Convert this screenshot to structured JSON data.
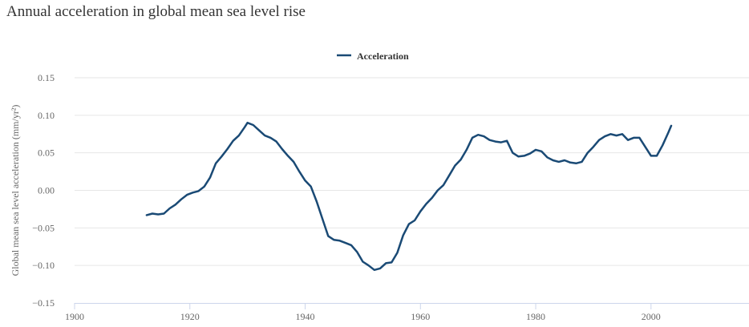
{
  "chart_data": {
    "type": "line",
    "title": "Annual acceleration in global mean sea level rise",
    "xlabel": "",
    "ylabel": "Global mean sea level acceleration (mm/yr²)",
    "xlim": [
      1900,
      2017
    ],
    "ylim": [
      -0.15,
      0.15
    ],
    "x_ticks": [
      1900,
      1920,
      1940,
      1960,
      1980,
      2000
    ],
    "y_ticks": [
      -0.15,
      -0.1,
      -0.05,
      0.0,
      0.05,
      0.1,
      0.15
    ],
    "y_tick_labels": [
      "−0.15",
      "−0.10",
      "−0.05",
      "0.00",
      "0.05",
      "0.10",
      "0.15"
    ],
    "grid": true,
    "legend_position": "top-center",
    "series": [
      {
        "name": "Acceleration",
        "color": "#1a4a75",
        "x": [
          1912.5,
          1913.5,
          1914.5,
          1915.5,
          1916.5,
          1917.5,
          1918.5,
          1919.5,
          1920.5,
          1921.5,
          1922.5,
          1923.5,
          1924.5,
          1925.5,
          1926.5,
          1927.5,
          1928.5,
          1929.5,
          1930.0,
          1931.0,
          1932.0,
          1933.0,
          1934.0,
          1935.0,
          1936.0,
          1937.0,
          1938.0,
          1939.0,
          1940.0,
          1941.0,
          1942.0,
          1943.0,
          1944.0,
          1945.0,
          1946.0,
          1947.0,
          1948.0,
          1949.0,
          1950.0,
          1951.0,
          1952.0,
          1953.0,
          1954.0,
          1955.0,
          1956.0,
          1957.0,
          1958.0,
          1959.0,
          1960.0,
          1961.0,
          1962.0,
          1963.0,
          1964.0,
          1965.0,
          1966.0,
          1967.0,
          1968.0,
          1969.0,
          1970.0,
          1971.0,
          1972.0,
          1973.0,
          1974.0,
          1975.0,
          1976.0,
          1977.0,
          1978.0,
          1979.0,
          1980.0,
          1981.0,
          1982.0,
          1983.0,
          1984.0,
          1985.0,
          1986.0,
          1987.0,
          1988.0,
          1989.0,
          1990.0,
          1991.0,
          1992.0,
          1993.0,
          1994.0,
          1995.0,
          1996.0,
          1997.0,
          1998.0,
          1999.0,
          2000.0,
          2001.0,
          2002.0,
          2003.0,
          2003.5
        ],
        "values": [
          -0.033,
          -0.031,
          -0.032,
          -0.031,
          -0.024,
          -0.019,
          -0.012,
          -0.006,
          -0.003,
          -0.001,
          0.005,
          0.017,
          0.036,
          0.045,
          0.055,
          0.066,
          0.073,
          0.084,
          0.09,
          0.087,
          0.08,
          0.073,
          0.07,
          0.065,
          0.055,
          0.046,
          0.038,
          0.025,
          0.013,
          0.005,
          -0.015,
          -0.038,
          -0.061,
          -0.066,
          -0.067,
          -0.07,
          -0.073,
          -0.082,
          -0.095,
          -0.1,
          -0.106,
          -0.104,
          -0.097,
          -0.096,
          -0.083,
          -0.06,
          -0.045,
          -0.04,
          -0.028,
          -0.018,
          -0.01,
          0.0,
          0.007,
          0.02,
          0.033,
          0.041,
          0.054,
          0.07,
          0.074,
          0.072,
          0.067,
          0.065,
          0.064,
          0.066,
          0.05,
          0.045,
          0.046,
          0.049,
          0.054,
          0.052,
          0.044,
          0.04,
          0.038,
          0.04,
          0.037,
          0.036,
          0.038,
          0.05,
          0.058,
          0.067,
          0.072,
          0.075,
          0.073,
          0.075,
          0.067,
          0.07,
          0.07,
          0.058,
          0.046,
          0.046,
          0.06,
          0.077,
          0.086
        ]
      }
    ]
  }
}
